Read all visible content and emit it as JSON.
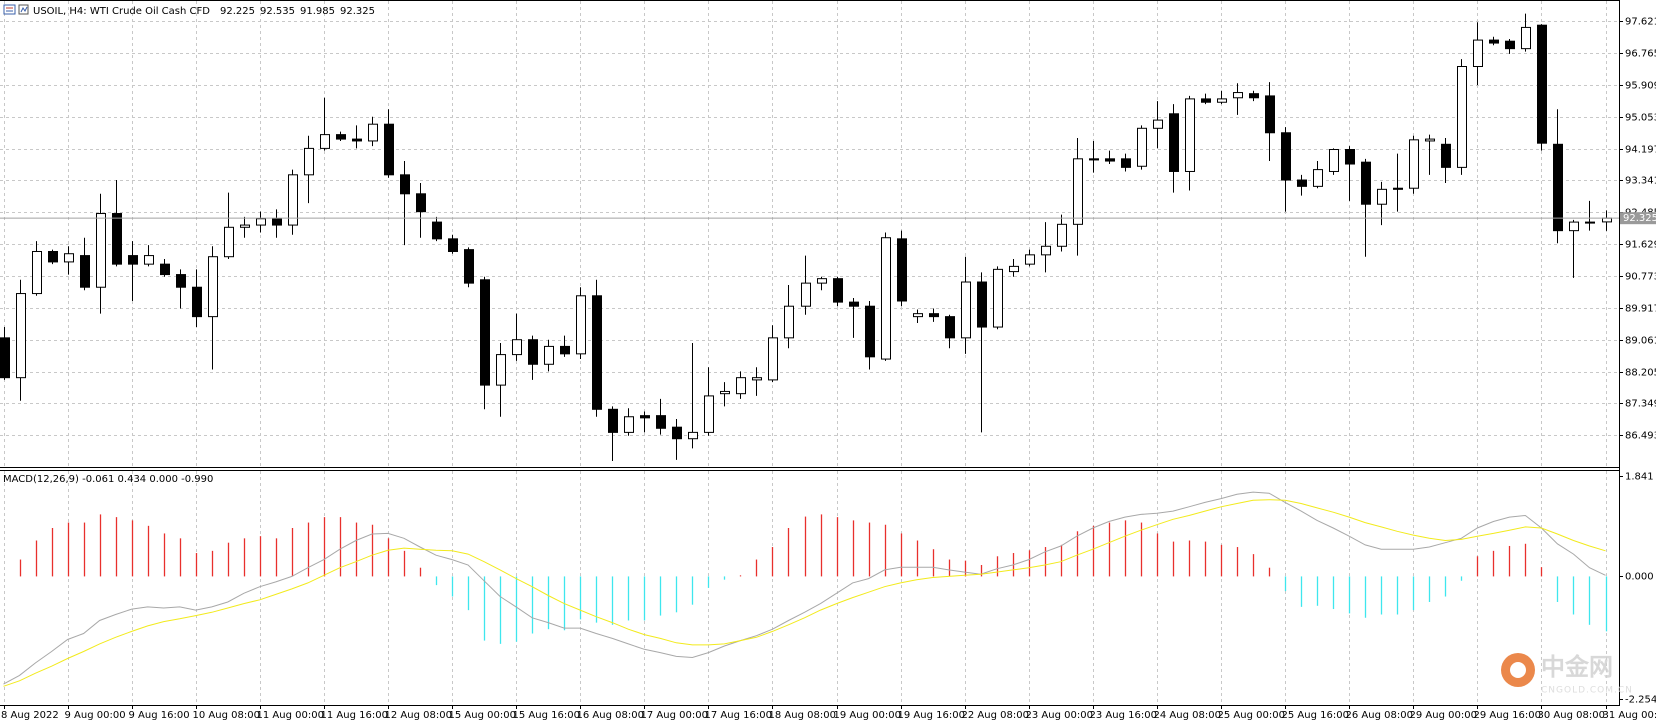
{
  "chart_data": [
    {
      "type": "candlestick",
      "title": "USOIL, H4:  WTI Crude Oil Cash CFD",
      "categories": [
        "8 Aug 2022",
        null,
        null,
        null,
        "9 Aug 00:00",
        null,
        null,
        null,
        "9 Aug 16:00",
        null,
        null,
        null,
        "10 Aug 08:00",
        null,
        null,
        null,
        "11 Aug 00:00",
        null,
        null,
        null,
        "11 Aug 16:00",
        null,
        null,
        null,
        "12 Aug 08:00",
        null,
        null,
        null,
        "15 Aug 00:00",
        null,
        null,
        null,
        "15 Aug 16:00",
        null,
        null,
        null,
        "16 Aug 08:00",
        null,
        null,
        null,
        "17 Aug 00:00",
        null,
        null,
        null,
        "17 Aug 16:00",
        null,
        null,
        null,
        "18 Aug 08:00",
        null,
        null,
        null,
        "19 Aug 00:00",
        null,
        null,
        null,
        "19 Aug 16:00",
        null,
        null,
        null,
        "22 Aug 08:00",
        null,
        null,
        null,
        "23 Aug 00:00",
        null,
        null,
        null,
        "23 Aug 16:00",
        null,
        null,
        null,
        "24 Aug 08:00",
        null,
        null,
        null,
        "25 Aug 00:00",
        null,
        null,
        null,
        "25 Aug 16:00",
        null,
        null,
        null,
        "26 Aug 08:00",
        null,
        null,
        null,
        "29 Aug 00:00",
        null,
        null,
        null,
        "29 Aug 16:00",
        null,
        null,
        null,
        "30 Aug 08:00",
        null,
        null,
        null,
        "31 Aug 00:00"
      ],
      "open": [
        89.11,
        88.04,
        90.3,
        91.43,
        91.15,
        91.32,
        90.47,
        92.45,
        91.32,
        91.09,
        91.09,
        90.81,
        90.47,
        89.68,
        91.29,
        92.08,
        92.14,
        92.31,
        92.14,
        93.49,
        94.2,
        94.57,
        94.45,
        94.4,
        94.85,
        93.49,
        92.98,
        92.22,
        91.77,
        91.48,
        90.67,
        87.84,
        88.66,
        89.06,
        88.4,
        88.88,
        88.68,
        90.24,
        87.19,
        86.57,
        87.02,
        87.02,
        86.71,
        86.4,
        86.57,
        87.61,
        87.61,
        87.98,
        87.98,
        89.11,
        89.96,
        90.58,
        90.7,
        90.07,
        89.96,
        88.54,
        91.77,
        89.68,
        89.76,
        89.68,
        89.11,
        90.61,
        89.4,
        90.89,
        91.09,
        91.34,
        91.57,
        92.16,
        93.92,
        93.92,
        93.92,
        93.72,
        94.74,
        95.13,
        93.58,
        95.53,
        95.44,
        95.56,
        95.67,
        95.61,
        94.62,
        93.35,
        93.18,
        93.58,
        94.17,
        93.83,
        92.7,
        93.13,
        93.13,
        94.4,
        94.31,
        93.69,
        96.4,
        97.11,
        97.08,
        96.88,
        97.51,
        94.31,
        91.99,
        92.22,
        92.225
      ],
      "high": [
        89.4,
        90.67,
        91.71,
        91.48,
        91.57,
        91.8,
        92.98,
        93.35,
        91.71,
        91.6,
        91.23,
        90.95,
        90.95,
        91.57,
        93.01,
        92.36,
        92.5,
        92.56,
        93.63,
        94.54,
        95.56,
        94.65,
        94.82,
        95.05,
        95.25,
        93.86,
        93.27,
        92.36,
        91.88,
        91.54,
        90.75,
        88.97,
        89.76,
        89.17,
        89.06,
        89.17,
        90.47,
        90.67,
        87.27,
        87.22,
        87.13,
        87.47,
        86.93,
        88.97,
        88.32,
        87.92,
        88.21,
        88.32,
        89.45,
        90.53,
        91.32,
        90.75,
        90.75,
        90.18,
        90.1,
        91.94,
        91.99,
        89.87,
        89.9,
        89.73,
        91.29,
        90.87,
        91.03,
        91.23,
        91.48,
        92.22,
        92.42,
        94.48,
        94.4,
        94.14,
        94.06,
        94.82,
        95.47,
        95.39,
        95.61,
        95.67,
        95.75,
        95.95,
        95.75,
        95.98,
        94.77,
        93.49,
        93.86,
        94.2,
        94.26,
        93.92,
        93.3,
        94.06,
        94.54,
        94.57,
        94.48,
        96.6,
        97.59,
        97.2,
        97.14,
        97.82,
        97.54,
        95.25,
        92.28,
        92.79,
        92.535
      ],
      "low": [
        87.98,
        87.42,
        90.24,
        91.09,
        90.81,
        90.39,
        89.76,
        91.03,
        90.1,
        91.03,
        90.75,
        89.9,
        89.4,
        88.26,
        91.23,
        91.8,
        91.94,
        91.8,
        91.88,
        92.73,
        94.14,
        94.4,
        94.2,
        94.26,
        93.41,
        91.6,
        91.8,
        91.71,
        91.37,
        90.47,
        87.19,
        86.99,
        88.49,
        87.98,
        88.21,
        88.6,
        88.54,
        86.99,
        85.8,
        86.48,
        86.57,
        86.51,
        85.83,
        86.14,
        86.48,
        87.27,
        87.47,
        87.55,
        87.92,
        88.83,
        89.73,
        90.39,
        89.96,
        89.11,
        88.26,
        88.49,
        89.96,
        89.51,
        89.54,
        88.83,
        88.68,
        86.57,
        89.34,
        90.75,
        91.03,
        90.87,
        91.43,
        91.32,
        93.55,
        93.78,
        93.58,
        93.63,
        94.2,
        93.01,
        93.07,
        95.39,
        95.39,
        95.1,
        95.47,
        93.86,
        92.5,
        92.93,
        93.13,
        93.49,
        92.79,
        91.29,
        92.14,
        92.5,
        92.98,
        93.49,
        93.27,
        93.49,
        95.9,
        96.97,
        96.74,
        96.8,
        94.14,
        91.65,
        90.72,
        91.99,
        91.985
      ],
      "close": [
        88.04,
        90.3,
        91.43,
        91.15,
        91.37,
        90.47,
        92.45,
        91.09,
        91.09,
        91.32,
        90.81,
        90.47,
        89.68,
        91.29,
        92.08,
        92.14,
        92.31,
        92.14,
        93.49,
        94.2,
        94.57,
        94.45,
        94.4,
        94.85,
        93.49,
        92.98,
        92.5,
        91.77,
        91.43,
        90.58,
        87.84,
        88.66,
        89.06,
        88.4,
        88.88,
        88.68,
        90.24,
        87.19,
        86.57,
        86.99,
        86.96,
        86.68,
        86.4,
        86.57,
        87.55,
        87.67,
        88.04,
        88.04,
        89.11,
        89.96,
        90.58,
        90.7,
        90.07,
        89.96,
        88.6,
        91.8,
        90.1,
        89.76,
        89.68,
        89.11,
        90.61,
        89.4,
        90.95,
        91.03,
        91.34,
        91.57,
        92.16,
        93.92,
        93.89,
        93.86,
        93.69,
        94.74,
        94.96,
        93.58,
        95.53,
        95.44,
        95.53,
        95.7,
        95.56,
        94.62,
        93.35,
        93.18,
        93.63,
        94.17,
        93.78,
        92.7,
        93.1,
        93.1,
        94.43,
        94.45,
        93.69,
        96.4,
        97.11,
        97.03,
        96.88,
        97.45,
        94.34,
        91.99,
        92.22,
        92.22,
        92.325
      ],
      "up_color": "#ffffff",
      "down_color": "#000000",
      "edge_color": "#000000",
      "ylim": [
        85.64,
        98.16
      ],
      "yticks": [
        97.621,
        96.765,
        95.909,
        95.053,
        94.197,
        93.341,
        92.485,
        91.629,
        90.773,
        89.917,
        89.061,
        88.205,
        87.349,
        86.493
      ],
      "grid": true,
      "price_line": true
    },
    {
      "type": "macd",
      "title": "MACD(12,26,9) -0.061 0.434 0.000 -0.990",
      "histogram": {
        "up_color": "#e8302c",
        "down_color": "#3ee6ee",
        "values": [
          null,
          0.31,
          0.66,
          0.89,
          0.99,
          0.99,
          1.14,
          1.09,
          1.03,
          0.93,
          0.79,
          0.7,
          0.43,
          0.47,
          0.62,
          0.7,
          0.74,
          0.7,
          0.89,
          0.99,
          1.09,
          1.09,
          0.99,
          0.95,
          0.7,
          0.47,
          0.16,
          -0.16,
          -0.37,
          -0.62,
          -1.18,
          -1.24,
          -1.2,
          -1.05,
          -0.97,
          -0.99,
          -0.79,
          -0.85,
          -0.89,
          -0.81,
          -0.81,
          -0.72,
          -0.66,
          -0.52,
          -0.21,
          -0.06,
          0.02,
          0.31,
          0.54,
          0.89,
          1.1,
          1.14,
          1.09,
          1.03,
          0.99,
          0.95,
          0.79,
          0.66,
          0.5,
          0.31,
          0.29,
          0.21,
          0.37,
          0.43,
          0.48,
          0.54,
          0.58,
          0.83,
          0.93,
          0.99,
          1.03,
          0.99,
          0.79,
          0.64,
          0.66,
          0.64,
          0.58,
          0.54,
          0.41,
          0.16,
          -0.27,
          -0.56,
          -0.54,
          -0.6,
          -0.68,
          -0.76,
          -0.7,
          -0.7,
          -0.62,
          -0.47,
          -0.37,
          -0.08,
          0.37,
          0.47,
          0.56,
          0.6,
          0.17,
          -0.47,
          -0.7,
          -0.89,
          -1.01
        ]
      },
      "macd": {
        "color": "#a8a8a8",
        "values": [
          -1.98,
          -1.82,
          -1.59,
          -1.38,
          -1.16,
          -1.05,
          -0.81,
          -0.7,
          -0.6,
          -0.56,
          -0.58,
          -0.56,
          -0.62,
          -0.56,
          -0.47,
          -0.31,
          -0.19,
          -0.1,
          0.0,
          0.16,
          0.31,
          0.5,
          0.66,
          0.78,
          0.79,
          0.7,
          0.54,
          0.39,
          0.31,
          0.21,
          -0.08,
          -0.37,
          -0.56,
          -0.76,
          -0.85,
          -0.95,
          -0.95,
          -1.05,
          -1.14,
          -1.24,
          -1.34,
          -1.4,
          -1.47,
          -1.49,
          -1.4,
          -1.28,
          -1.18,
          -1.09,
          -0.97,
          -0.81,
          -0.66,
          -0.5,
          -0.31,
          -0.12,
          -0.04,
          0.12,
          0.17,
          0.17,
          0.17,
          0.12,
          0.08,
          0.04,
          0.14,
          0.21,
          0.31,
          0.45,
          0.56,
          0.74,
          0.89,
          1.01,
          1.09,
          1.14,
          1.16,
          1.2,
          1.28,
          1.36,
          1.43,
          1.51,
          1.55,
          1.53,
          1.36,
          1.2,
          1.03,
          0.89,
          0.74,
          0.58,
          0.5,
          0.5,
          0.5,
          0.54,
          0.62,
          0.7,
          0.89,
          1.01,
          1.09,
          1.12,
          0.89,
          0.6,
          0.41,
          0.16,
          0.02
        ]
      },
      "signal": {
        "color": "#f2ea1c",
        "values": [
          -2.02,
          -1.92,
          -1.78,
          -1.65,
          -1.51,
          -1.38,
          -1.24,
          -1.12,
          -1.01,
          -0.91,
          -0.83,
          -0.78,
          -0.72,
          -0.66,
          -0.58,
          -0.5,
          -0.43,
          -0.33,
          -0.23,
          -0.12,
          0.02,
          0.16,
          0.27,
          0.39,
          0.48,
          0.52,
          0.5,
          0.48,
          0.47,
          0.41,
          0.27,
          0.12,
          -0.04,
          -0.19,
          -0.35,
          -0.5,
          -0.62,
          -0.74,
          -0.85,
          -0.97,
          -1.07,
          -1.14,
          -1.22,
          -1.26,
          -1.26,
          -1.24,
          -1.18,
          -1.12,
          -1.01,
          -0.89,
          -0.76,
          -0.62,
          -0.5,
          -0.39,
          -0.29,
          -0.19,
          -0.12,
          -0.06,
          -0.02,
          0.0,
          0.02,
          0.04,
          0.08,
          0.12,
          0.16,
          0.21,
          0.27,
          0.39,
          0.5,
          0.62,
          0.74,
          0.85,
          0.95,
          1.05,
          1.12,
          1.2,
          1.28,
          1.34,
          1.4,
          1.41,
          1.4,
          1.34,
          1.26,
          1.18,
          1.09,
          0.99,
          0.91,
          0.83,
          0.76,
          0.7,
          0.66,
          0.68,
          0.74,
          0.79,
          0.85,
          0.91,
          0.89,
          0.78,
          0.66,
          0.56,
          0.47
        ]
      },
      "ylim": [
        -2.364,
        1.938
      ],
      "yticks": [
        1.841,
        {
          "value": 0,
          "label": "0.000"
        },
        -2.254
      ]
    }
  ],
  "watermark": {
    "name": "中金网",
    "site": "CNGOLD.COM.CN"
  }
}
